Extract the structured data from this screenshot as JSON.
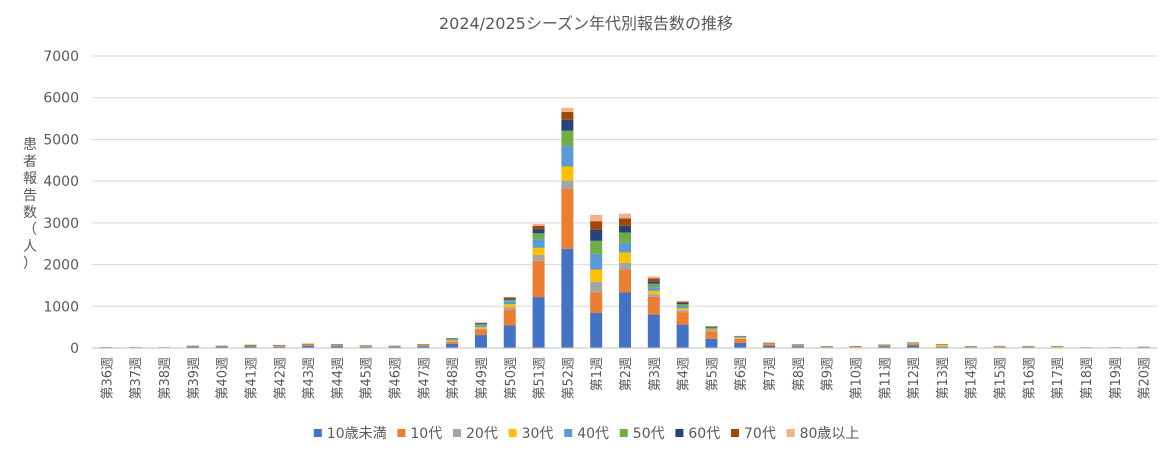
{
  "chart_data": {
    "type": "bar",
    "stacked": true,
    "title": "2024/2025シーズン年代別報告数の推移",
    "xlabel": "",
    "ylabel": "患者報告数（人）",
    "ylim": [
      0,
      7000
    ],
    "yticks": [
      0,
      1000,
      2000,
      3000,
      4000,
      5000,
      6000,
      7000
    ],
    "grid": true,
    "legend_position": "bottom",
    "categories": [
      "第36週",
      "第37週",
      "第38週",
      "第39週",
      "第40週",
      "第41週",
      "第42週",
      "第43週",
      "第44週",
      "第45週",
      "第46週",
      "第47週",
      "第48週",
      "第49週",
      "第50週",
      "第51週",
      "第52週",
      "第1週",
      "第2週",
      "第3週",
      "第4週",
      "第5週",
      "第6週",
      "第7週",
      "第8週",
      "第9週",
      "第10週",
      "第11週",
      "第12週",
      "第13週",
      "第14週",
      "第15週",
      "第16週",
      "第17週",
      "第18週",
      "第19週",
      "第20週"
    ],
    "series": [
      {
        "name": "10歳未満",
        "color": "#4472C4",
        "values": [
          5,
          10,
          8,
          25,
          25,
          35,
          30,
          50,
          45,
          30,
          28,
          45,
          100,
          310,
          540,
          1220,
          2380,
          840,
          1330,
          800,
          560,
          220,
          120,
          50,
          40,
          20,
          15,
          35,
          60,
          25,
          20,
          20,
          22,
          10,
          5,
          6,
          12
        ]
      },
      {
        "name": "10代",
        "color": "#ED7D31",
        "values": [
          3,
          5,
          3,
          15,
          15,
          20,
          18,
          25,
          20,
          15,
          12,
          18,
          50,
          130,
          380,
          870,
          1440,
          500,
          540,
          430,
          300,
          180,
          100,
          40,
          20,
          8,
          8,
          20,
          35,
          12,
          8,
          10,
          8,
          4,
          2,
          2,
          5
        ]
      },
      {
        "name": "20代",
        "color": "#A5A5A5",
        "values": [
          1,
          2,
          2,
          4,
          4,
          5,
          4,
          5,
          5,
          3,
          3,
          5,
          15,
          25,
          60,
          140,
          200,
          250,
          170,
          60,
          40,
          20,
          12,
          8,
          4,
          3,
          3,
          4,
          5,
          3,
          2,
          2,
          2,
          1,
          1,
          1,
          2
        ]
      },
      {
        "name": "30代",
        "color": "#FFC000",
        "values": [
          5,
          3,
          2,
          4,
          4,
          5,
          5,
          6,
          6,
          4,
          5,
          6,
          18,
          35,
          70,
          170,
          330,
          290,
          250,
          80,
          50,
          25,
          14,
          8,
          6,
          4,
          5,
          8,
          10,
          40,
          5,
          5,
          5,
          20,
          3,
          2,
          8
        ]
      },
      {
        "name": "40代",
        "color": "#5B9BD5",
        "values": [
          1,
          2,
          2,
          4,
          4,
          6,
          6,
          8,
          7,
          5,
          5,
          7,
          20,
          45,
          70,
          210,
          490,
          380,
          230,
          90,
          55,
          25,
          15,
          10,
          8,
          5,
          5,
          7,
          10,
          6,
          5,
          5,
          5,
          2,
          1,
          1,
          3
        ]
      },
      {
        "name": "50代",
        "color": "#70AD47",
        "values": [
          1,
          1,
          5,
          3,
          3,
          4,
          4,
          5,
          5,
          3,
          3,
          5,
          15,
          25,
          35,
          140,
          370,
          310,
          250,
          80,
          45,
          20,
          12,
          6,
          4,
          3,
          3,
          5,
          8,
          3,
          3,
          3,
          3,
          2,
          1,
          8,
          2
        ]
      },
      {
        "name": "60代",
        "color": "#264478",
        "values": [
          1,
          1,
          1,
          2,
          2,
          3,
          3,
          4,
          3,
          2,
          2,
          4,
          10,
          20,
          30,
          100,
          260,
          260,
          160,
          60,
          30,
          15,
          8,
          5,
          3,
          2,
          2,
          3,
          4,
          2,
          2,
          2,
          2,
          1,
          1,
          1,
          1
        ]
      },
      {
        "name": "70代",
        "color": "#9E480E",
        "values": [
          1,
          1,
          1,
          2,
          2,
          3,
          3,
          4,
          3,
          2,
          2,
          3,
          8,
          15,
          25,
          80,
          190,
          210,
          180,
          70,
          30,
          12,
          6,
          4,
          3,
          2,
          2,
          3,
          3,
          2,
          2,
          2,
          2,
          1,
          1,
          1,
          1
        ]
      },
      {
        "name": "80歳以上",
        "color": "#F4B183",
        "values": [
          1,
          1,
          1,
          2,
          2,
          3,
          3,
          3,
          3,
          2,
          2,
          3,
          6,
          10,
          15,
          45,
          100,
          150,
          110,
          45,
          20,
          10,
          5,
          3,
          2,
          2,
          2,
          2,
          2,
          2,
          2,
          2,
          2,
          1,
          1,
          1,
          1
        ]
      }
    ]
  }
}
